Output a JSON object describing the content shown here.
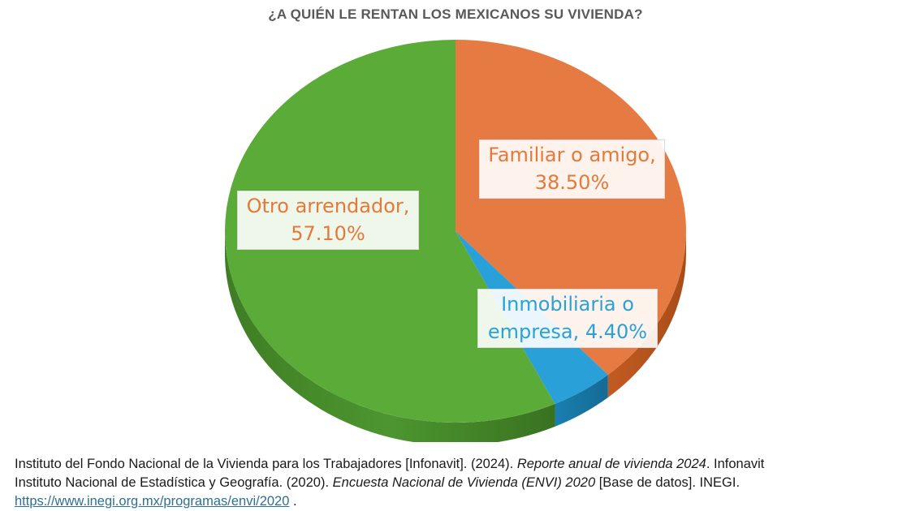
{
  "chart_data": {
    "type": "pie",
    "title": "¿A QUIÉN LE RENTAN LOS MEXICANOS SU VIVIENDA?",
    "slices": [
      {
        "name": "Familiar o amigo",
        "value": 38.5,
        "label_line1": "Familiar o amigo,",
        "label_line2": "38.50%",
        "color": "#e57b42"
      },
      {
        "name": "Inmobiliaria o empresa",
        "value": 4.4,
        "label_line1": "Inmobiliaria o",
        "label_line2": "empresa, 4.40%",
        "color": "#2aa0d8"
      },
      {
        "name": "Otro arrendador",
        "value": 57.1,
        "label_line1": "Otro arrendador,",
        "label_line2": "57.10%",
        "color": "#5aab38"
      }
    ],
    "style": "3d"
  },
  "source": {
    "line1_pre": "Instituto del Fondo Nacional de la Vivienda para los Trabajadores [Infonavit]. (2024). ",
    "line1_em": "Reporte anual de vivienda 2024",
    "line1_post": ". Infonavit",
    "line2_pre": "Instituto Nacional de Estadística y Geografía. (2020). ",
    "line2_em": "Encuesta Nacional de Vivienda (ENVI) 2020",
    "line2_post": " [Base de datos]. INEGI.",
    "link": "https://www.inegi.org.mx/programas/envi/2020",
    "link_post": " ."
  }
}
